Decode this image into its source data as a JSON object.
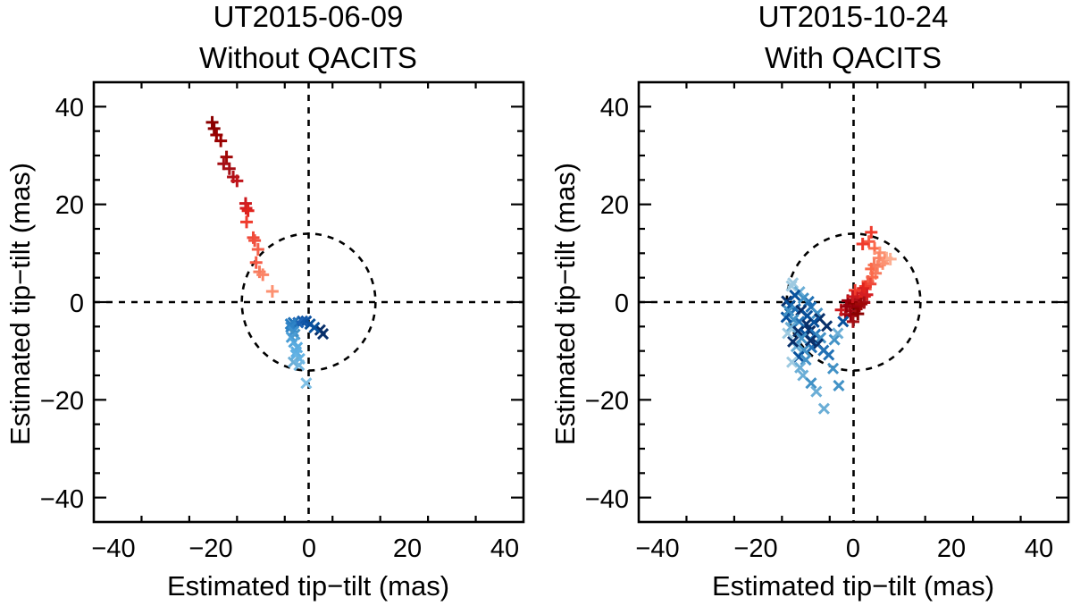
{
  "chart_data": [
    {
      "type": "scatter",
      "title": [
        "UT2015-06-09",
        "Without QACITS"
      ],
      "xlabel": "Estimated tip−tilt (mas)",
      "ylabel": "Estimated tip−tilt (mas)",
      "xlim": [
        -45,
        45
      ],
      "ylim": [
        -45,
        45
      ],
      "xticks": [
        -40,
        -20,
        0,
        20,
        40
      ],
      "yticks": [
        -40,
        -20,
        0,
        20,
        40
      ],
      "tick_labels": [
        "−40",
        "−20",
        "0",
        "20",
        "40"
      ],
      "reference_circle_radius": 14,
      "series": [
        {
          "name": "plus (red)",
          "marker": "+",
          "points": [
            [
              -20.2,
              36.8,
              "#8b0000"
            ],
            [
              -19.8,
              35.5,
              "#8b0000"
            ],
            [
              -19.3,
              34.2,
              "#990000"
            ],
            [
              -18.4,
              33.0,
              "#990000"
            ],
            [
              -17.2,
              29.7,
              "#a00808"
            ],
            [
              -17.8,
              28.3,
              "#a50f15"
            ],
            [
              -16.6,
              27.3,
              "#a50f15"
            ],
            [
              -15.8,
              25.6,
              "#b01018"
            ],
            [
              -15.0,
              24.8,
              "#c0141a"
            ],
            [
              -13.2,
              20.2,
              "#cb181d"
            ],
            [
              -13.1,
              19.2,
              "#d41e22"
            ],
            [
              -12.7,
              18.7,
              "#e0231d"
            ],
            [
              -13.0,
              16.4,
              "#ef3b2c"
            ],
            [
              -11.6,
              13.2,
              "#ef4a3a"
            ],
            [
              -11.3,
              12.6,
              "#f0503e"
            ],
            [
              -10.6,
              10.8,
              "#f45f49"
            ],
            [
              -11.0,
              8.1,
              "#f65a45"
            ],
            [
              -10.3,
              6.2,
              "#f77b5e"
            ],
            [
              -9.6,
              5.6,
              "#fb8466"
            ],
            [
              -7.6,
              2.2,
              "#fc9272"
            ]
          ]
        },
        {
          "name": "cross (blue)",
          "marker": "x",
          "points": [
            [
              3.0,
              -6.5,
              "#08306b"
            ],
            [
              2.4,
              -5.7,
              "#08306b"
            ],
            [
              1.2,
              -5.2,
              "#08519c"
            ],
            [
              0.3,
              -4.5,
              "#08519c"
            ],
            [
              -0.5,
              -3.9,
              "#0b4fa0"
            ],
            [
              -1.3,
              -3.9,
              "#1157a8"
            ],
            [
              -2.2,
              -4.2,
              "#1c62b4"
            ],
            [
              -3.2,
              -4.2,
              "#2171b5"
            ],
            [
              -3.8,
              -4.5,
              "#2a7fc2"
            ],
            [
              -3.7,
              -5.1,
              "#2f83c6"
            ],
            [
              -3.2,
              -6.0,
              "#3a8fd0"
            ],
            [
              -2.9,
              -6.6,
              "#4292c6"
            ],
            [
              -3.6,
              -7.2,
              "#4a9cd4"
            ],
            [
              -3.1,
              -8.2,
              "#52a6dc"
            ],
            [
              -2.4,
              -9.3,
              "#5aace0"
            ],
            [
              -2.6,
              -10.2,
              "#5daee2"
            ],
            [
              -2.7,
              -10.8,
              "#60b0e3"
            ],
            [
              -1.9,
              -11.6,
              "#66b4e4"
            ],
            [
              -3.2,
              -12.3,
              "#6baed6"
            ],
            [
              -2.0,
              -12.9,
              "#72b6e0"
            ],
            [
              -0.5,
              -16.6,
              "#7ec0e6"
            ]
          ]
        }
      ]
    },
    {
      "type": "scatter",
      "title": [
        "UT2015-10-24",
        "With QACITS"
      ],
      "xlabel": "Estimated tip−tilt (mas)",
      "ylabel": "Estimated tip−tilt (mas)",
      "xlim": [
        -45,
        45
      ],
      "ylim": [
        -45,
        45
      ],
      "xticks": [
        -40,
        -20,
        0,
        20,
        40
      ],
      "yticks": [
        -40,
        -20,
        0,
        20,
        40
      ],
      "tick_labels": [
        "−40",
        "−20",
        "0",
        "20",
        "40"
      ],
      "reference_circle_radius": 14,
      "series": [
        {
          "name": "plus (red)",
          "marker": "+",
          "points": [
            [
              3.7,
              14.3,
              "#ef3b2c"
            ],
            [
              3.2,
              12.4,
              "#f65a45"
            ],
            [
              1.9,
              11.9,
              "#ef3b2c"
            ],
            [
              4.4,
              11.0,
              "#fb6a4a"
            ],
            [
              5.5,
              10.1,
              "#fc9272"
            ],
            [
              6.9,
              9.0,
              "#fcae91"
            ],
            [
              6.5,
              8.6,
              "#fc9272"
            ],
            [
              7.7,
              8.8,
              "#fcae91"
            ],
            [
              5.3,
              9.0,
              "#fb8466"
            ],
            [
              6.1,
              7.9,
              "#fc9272"
            ],
            [
              5.0,
              7.3,
              "#fb8466"
            ],
            [
              4.3,
              7.6,
              "#f77b5e"
            ],
            [
              3.7,
              6.8,
              "#fb6a4a"
            ],
            [
              4.6,
              5.9,
              "#f77b5e"
            ],
            [
              3.9,
              5.1,
              "#fb6a4a"
            ],
            [
              3.0,
              4.2,
              "#f45f49"
            ],
            [
              3.5,
              3.7,
              "#ef4a3a"
            ],
            [
              2.5,
              3.2,
              "#ef3b2c"
            ],
            [
              2.0,
              2.8,
              "#e0231d"
            ],
            [
              1.5,
              1.8,
              "#d41e22"
            ],
            [
              0.8,
              0.9,
              "#cb181d"
            ],
            [
              2.3,
              1.2,
              "#e0231d"
            ],
            [
              0.2,
              0.4,
              "#b01018"
            ],
            [
              -0.9,
              -0.6,
              "#a50f15"
            ],
            [
              -1.2,
              0.3,
              "#99000d"
            ],
            [
              -0.3,
              -0.2,
              "#8b0000"
            ],
            [
              0.5,
              -1.1,
              "#8b0000"
            ],
            [
              1.2,
              -0.8,
              "#99000d"
            ],
            [
              2.2,
              -0.1,
              "#a50f15"
            ],
            [
              -0.7,
              -1.8,
              "#a50f15"
            ],
            [
              -1.7,
              -2.5,
              "#b01018"
            ],
            [
              -0.6,
              -2.8,
              "#99000d"
            ],
            [
              0.9,
              -2.4,
              "#8b0000"
            ],
            [
              -2.6,
              -1.6,
              "#cb181d"
            ],
            [
              -0.1,
              -4.0,
              "#a50f15"
            ],
            [
              1.6,
              -0.4,
              "#a00808"
            ],
            [
              2.8,
              1.5,
              "#d41e22"
            ],
            [
              0.3,
              2.4,
              "#ef3b2c"
            ],
            [
              -1.5,
              -0.9,
              "#99000d"
            ],
            [
              -0.2,
              1.1,
              "#cb181d"
            ]
          ]
        },
        {
          "name": "cross (blue)",
          "marker": "x",
          "points": [
            [
              -14.0,
              0.2,
              "#08306b"
            ],
            [
              -13.0,
              3.3,
              "#9ecae1"
            ],
            [
              -12.7,
              3.9,
              "#9ecae1"
            ],
            [
              -11.3,
              2.1,
              "#6baed6"
            ],
            [
              -9.4,
              0.1,
              "#2171b5"
            ],
            [
              -10.5,
              0.8,
              "#4292c6"
            ],
            [
              -13.3,
              -0.7,
              "#08519c"
            ],
            [
              -12.2,
              -1.4,
              "#2171b5"
            ],
            [
              -11.0,
              -1.7,
              "#08306b"
            ],
            [
              -9.7,
              -2.8,
              "#08519c"
            ],
            [
              -8.9,
              -1.0,
              "#2171b5"
            ],
            [
              -7.6,
              -2.3,
              "#4292c6"
            ],
            [
              -7.1,
              -3.4,
              "#08306b"
            ],
            [
              -8.3,
              -4.1,
              "#08519c"
            ],
            [
              -9.9,
              -4.5,
              "#08306b"
            ],
            [
              -11.4,
              -4.0,
              "#2171b5"
            ],
            [
              -12.6,
              -3.6,
              "#4292c6"
            ],
            [
              -14.1,
              -3.1,
              "#08519c"
            ],
            [
              -13.2,
              -5.2,
              "#6baed6"
            ],
            [
              -11.6,
              -6.0,
              "#08306b"
            ],
            [
              -10.2,
              -6.5,
              "#08519c"
            ],
            [
              -9.1,
              -5.9,
              "#08306b"
            ],
            [
              -8.0,
              -6.6,
              "#2171b5"
            ],
            [
              -6.9,
              -7.3,
              "#4292c6"
            ],
            [
              -7.5,
              -8.6,
              "#08306b"
            ],
            [
              -8.8,
              -9.3,
              "#2171b5"
            ],
            [
              -10.4,
              -9.8,
              "#4292c6"
            ],
            [
              -12.0,
              -9.1,
              "#6baed6"
            ],
            [
              -12.7,
              -8.1,
              "#08306b"
            ],
            [
              -11.5,
              -11.2,
              "#08519c"
            ],
            [
              -10.0,
              -11.8,
              "#4292c6"
            ],
            [
              -12.9,
              -12.3,
              "#9ecae1"
            ],
            [
              -11.2,
              -13.4,
              "#6baed6"
            ],
            [
              -10.6,
              -15.0,
              "#6baed6"
            ],
            [
              -8.9,
              -16.6,
              "#4292c6"
            ],
            [
              -7.8,
              -18.3,
              "#6baed6"
            ],
            [
              -6.2,
              -21.8,
              "#6baed6"
            ],
            [
              -4.3,
              -13.6,
              "#4292c6"
            ],
            [
              -3.1,
              -17.1,
              "#4292c6"
            ],
            [
              -5.2,
              -10.8,
              "#2171b5"
            ],
            [
              -4.0,
              -7.7,
              "#4292c6"
            ],
            [
              -3.3,
              -6.4,
              "#6baed6"
            ],
            [
              -2.2,
              -4.0,
              "#08519c"
            ],
            [
              -5.6,
              -4.9,
              "#08306b"
            ],
            [
              -6.3,
              -9.9,
              "#2171b5"
            ],
            [
              -13.6,
              -1.8,
              "#4292c6"
            ],
            [
              -12.3,
              1.4,
              "#08519c"
            ],
            [
              -9.0,
              -7.9,
              "#08306b"
            ],
            [
              -10.9,
              -7.4,
              "#4292c6"
            ],
            [
              -13.8,
              -6.4,
              "#9ecae1"
            ]
          ]
        }
      ]
    }
  ]
}
